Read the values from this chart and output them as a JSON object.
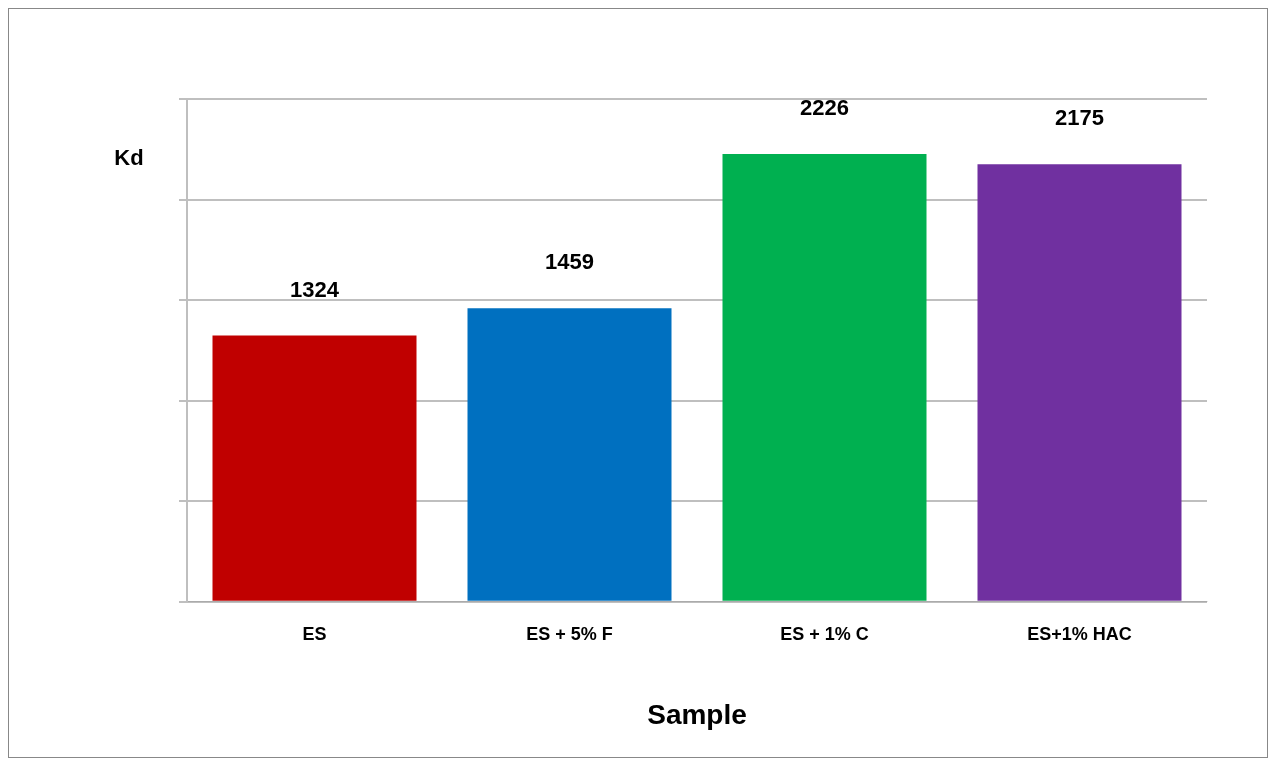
{
  "chart_data": {
    "type": "bar",
    "xlabel": "Sample",
    "ylabel": "Kd",
    "categories": [
      "ES",
      "ES + 5% F",
      "ES + 1% C",
      "ES+1% HAC"
    ],
    "values": [
      1324,
      1459,
      2226,
      2175
    ],
    "colors": [
      "#c00000",
      "#0070c0",
      "#00b050",
      "#7030a0"
    ],
    "data_labels": true,
    "grid": "y",
    "tick_labels": "x",
    "ylim": [
      0,
      2500
    ],
    "yticks": [
      {
        "value": 0,
        "label": null
      },
      {
        "value": 500,
        "label": null
      },
      {
        "value": 1000,
        "label": null
      },
      {
        "value": 1500,
        "label": null
      },
      {
        "value": 2000,
        "label": null
      },
      {
        "value": 2500,
        "label": null
      }
    ]
  }
}
